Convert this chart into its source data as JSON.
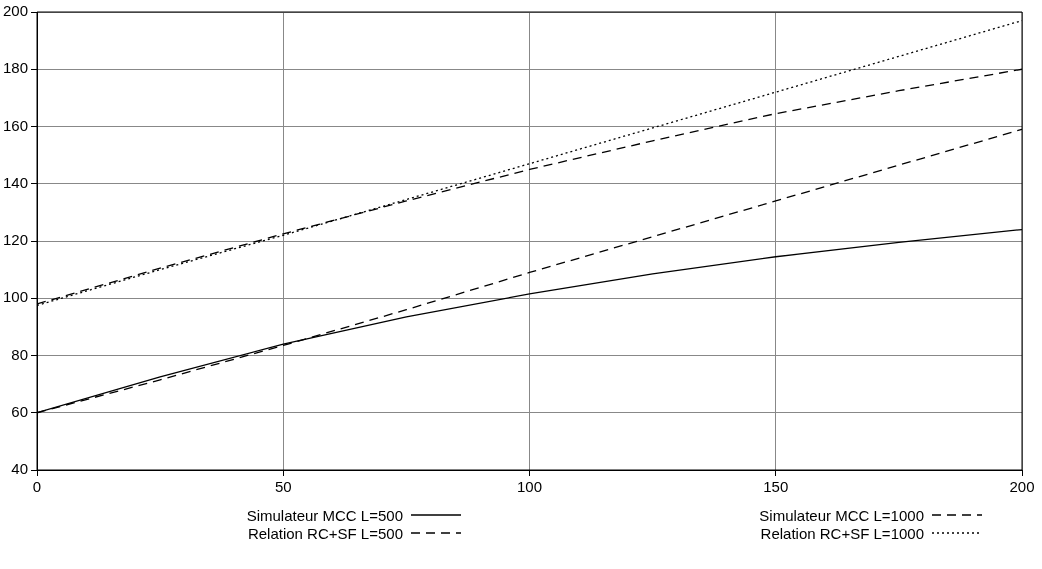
{
  "chart_data": {
    "type": "line",
    "x": [
      0,
      25,
      50,
      75,
      100,
      125,
      150,
      175,
      200
    ],
    "series": [
      {
        "name": "Simulateur MCC L=500",
        "color": "#000000",
        "line_style": "solid",
        "values": [
          60,
          72.5,
          84,
          93.5,
          101.5,
          108.5,
          114.5,
          119.5,
          124
        ]
      },
      {
        "name": "Relation RC+SF L=500",
        "color": "#000000",
        "line_style": "dashed",
        "values": [
          60,
          71.5,
          83.5,
          96,
          109,
          121.5,
          134,
          146.5,
          159
        ]
      },
      {
        "name": "Simulateur MCC L=1000",
        "color": "#000000",
        "line_style": "dashed",
        "values": [
          98,
          110.5,
          122.5,
          134,
          145,
          155,
          164.5,
          172.5,
          180
        ]
      },
      {
        "name": "Relation RC+SF L=1000",
        "color": "#000000",
        "line_style": "dotted",
        "values": [
          97.5,
          110,
          122,
          134.5,
          147,
          159.5,
          172,
          184.5,
          197
        ]
      }
    ],
    "xlim": [
      0,
      200
    ],
    "xticks": [
      0,
      50,
      100,
      150,
      200
    ],
    "ylim": [
      40,
      200
    ],
    "yticks": [
      40,
      60,
      80,
      100,
      120,
      140,
      160,
      180,
      200
    ],
    "grid": true,
    "legend": "bottom",
    "marker": "none"
  }
}
